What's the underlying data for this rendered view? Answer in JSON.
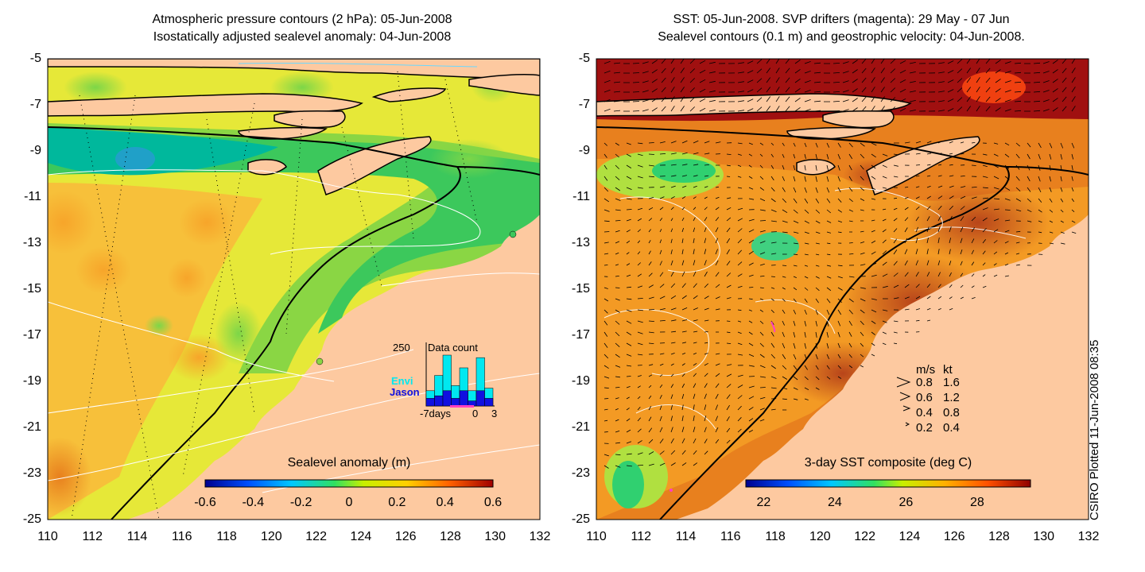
{
  "left_panel": {
    "title_line1": "Atmospheric pressure contours (2 hPa): 05-Jun-2008",
    "title_line2": "Isostatically adjusted sealevel anomaly: 04-Jun-2008",
    "colorbar": {
      "label": "Sealevel anomaly (m)",
      "ticks": [
        "-0.6",
        "-0.4",
        "-0.2",
        "0",
        "0.2",
        "0.4",
        "0.6"
      ],
      "range": [
        -0.6,
        0.6
      ]
    },
    "histogram": {
      "title": "Data count",
      "ymax_label": "250",
      "series_envi": "Envi",
      "series_jason": "Jason",
      "x_start": "-7days",
      "x_zero": "0",
      "x_end": "3",
      "envi_values": [
        60,
        120,
        200,
        80,
        150,
        60,
        190,
        70
      ],
      "jason_values": [
        30,
        40,
        60,
        30,
        60,
        20,
        60,
        30
      ]
    }
  },
  "right_panel": {
    "title_line1": "SST: 05-Jun-2008. SVP drifters (magenta): 29 May - 07 Jun",
    "title_line2": "Sealevel contours (0.1 m) and geostrophic velocity: 04-Jun-2008.",
    "colorbar": {
      "label": "3-day SST composite (deg C)",
      "ticks": [
        "22",
        "24",
        "26",
        "28"
      ],
      "range": [
        21.5,
        29.5
      ]
    },
    "velocity_legend": {
      "header_ms": "m/s",
      "header_kt": "kt",
      "rows": [
        {
          "ms": "0.8",
          "kt": "1.6"
        },
        {
          "ms": "0.6",
          "kt": "1.2"
        },
        {
          "ms": "0.4",
          "kt": "0.8"
        },
        {
          "ms": "0.2",
          "kt": "0.4"
        }
      ]
    }
  },
  "axes": {
    "lat_ticks": [
      "-5",
      "-7",
      "-9",
      "-11",
      "-13",
      "-15",
      "-17",
      "-19",
      "-21",
      "-23",
      "-25"
    ],
    "lon_ticks": [
      "110",
      "112",
      "114",
      "116",
      "118",
      "120",
      "122",
      "124",
      "126",
      "128",
      "130",
      "132"
    ],
    "lat_range": [
      -25,
      -5
    ],
    "lon_range": [
      110,
      132
    ]
  },
  "credit": "CSIRO Plotted 11-Jun-2008 08:35",
  "colors": {
    "land": "#fdc9a0",
    "coast": "#000000"
  }
}
